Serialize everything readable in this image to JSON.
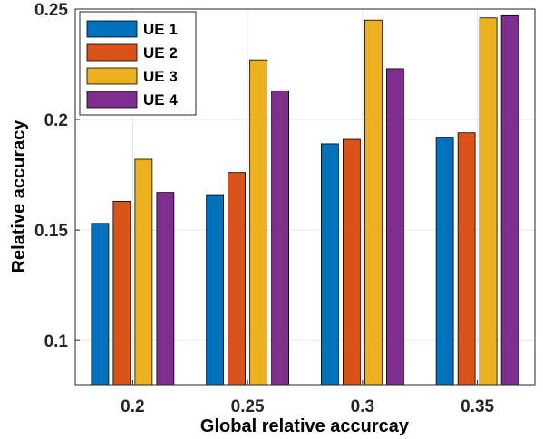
{
  "chart_data": {
    "type": "bar",
    "title": "",
    "xlabel": "Global relative accurcay",
    "ylabel": "Relative accuracy",
    "categories": [
      "0.2",
      "0.25",
      "0.3",
      "0.35"
    ],
    "ylim": [
      0.08,
      0.25
    ],
    "yticks": [
      0.1,
      0.15,
      0.2,
      0.25
    ],
    "ytick_labels": [
      "0.1",
      "0.15",
      "0.2",
      "0.25"
    ],
    "grid": true,
    "legend_position": "top-left",
    "series": [
      {
        "name": "UE 1",
        "color": "#0072BD",
        "values": [
          0.153,
          0.166,
          0.189,
          0.192
        ]
      },
      {
        "name": "UE 2",
        "color": "#D95319",
        "values": [
          0.163,
          0.176,
          0.191,
          0.194
        ]
      },
      {
        "name": "UE 3",
        "color": "#EDB120",
        "values": [
          0.182,
          0.227,
          0.245,
          0.246
        ]
      },
      {
        "name": "UE 4",
        "color": "#7E2F8E",
        "values": [
          0.167,
          0.213,
          0.223,
          0.247
        ]
      }
    ]
  }
}
